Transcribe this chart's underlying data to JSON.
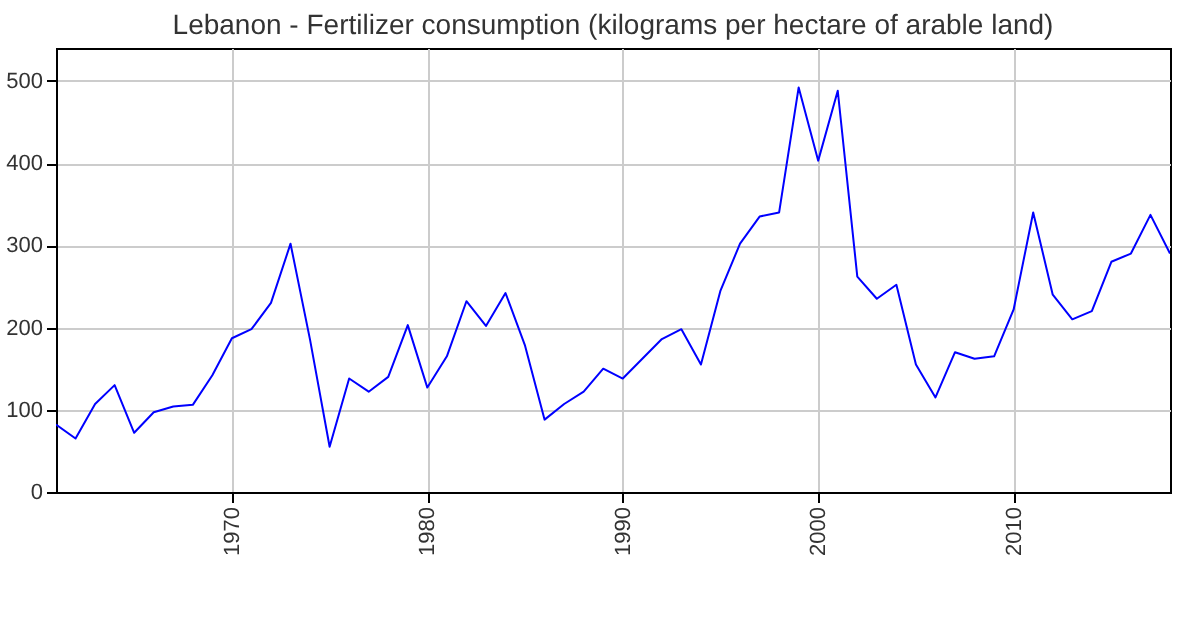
{
  "chart_data": {
    "type": "line",
    "title": "Lebanon - Fertilizer consumption (kilograms per hectare of arable land)",
    "x": [
      1961,
      1962,
      1963,
      1964,
      1965,
      1966,
      1967,
      1968,
      1969,
      1970,
      1971,
      1972,
      1973,
      1974,
      1975,
      1976,
      1977,
      1978,
      1979,
      1980,
      1981,
      1982,
      1983,
      1984,
      1985,
      1986,
      1987,
      1988,
      1989,
      1990,
      1991,
      1992,
      1993,
      1994,
      1995,
      1996,
      1997,
      1998,
      1999,
      2000,
      2001,
      2002,
      2003,
      2004,
      2005,
      2006,
      2007,
      2008,
      2009,
      2010,
      2011,
      2012,
      2013,
      2014,
      2015,
      2016,
      2017,
      2018
    ],
    "series": [
      {
        "color": "#0000ff",
        "values": [
          82,
          65,
          107,
          130,
          72,
          97,
          104,
          106,
          142,
          187,
          198,
          230,
          302,
          185,
          55,
          138,
          122,
          140,
          203,
          127,
          165,
          232,
          202,
          242,
          178,
          88,
          107,
          122,
          150,
          138,
          162,
          186,
          198,
          155,
          245,
          302,
          335,
          340,
          492,
          403,
          488,
          262,
          235,
          252,
          155,
          115,
          170,
          162,
          165,
          222,
          340,
          240,
          210,
          220,
          280,
          290,
          337,
          290
        ]
      }
    ],
    "xlim": [
      1961,
      2018
    ],
    "xticks": [
      1970,
      1980,
      1990,
      2000,
      2010
    ],
    "ylim": [
      0,
      540
    ],
    "yticks": [
      0,
      100,
      200,
      300,
      400,
      500
    ],
    "grid": true,
    "marker": "none",
    "line_style": "solid"
  }
}
